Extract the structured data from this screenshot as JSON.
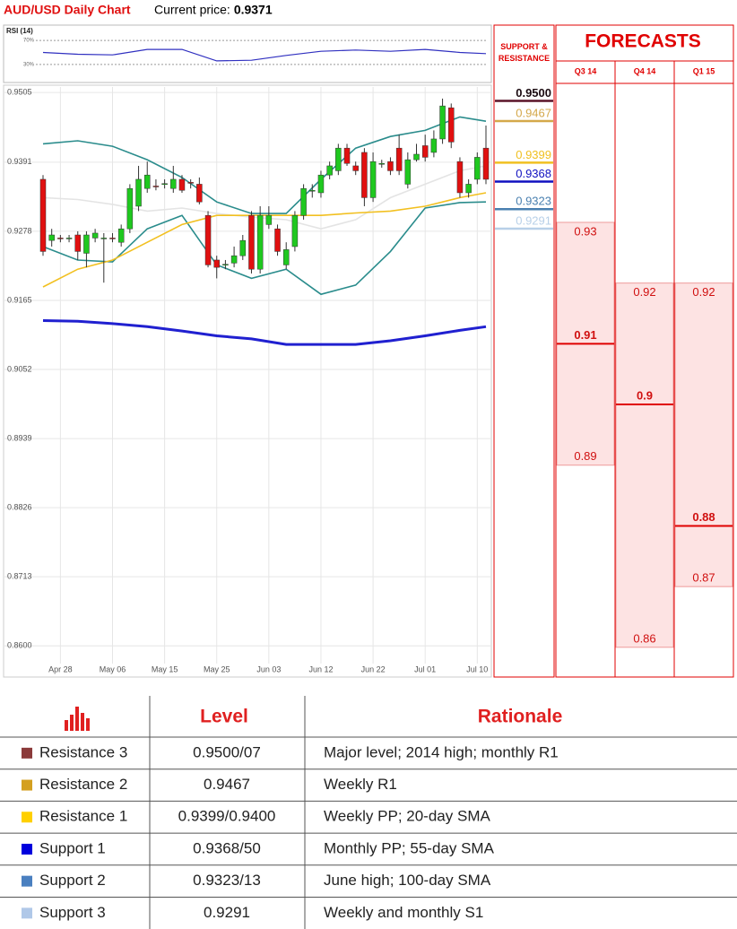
{
  "header": {
    "title": "AUD/USD Daily Chart",
    "price_label": "Current price:",
    "price": 0.9371
  },
  "chart_data": [
    {
      "type": "candlestick",
      "categories": [
        null,
        null,
        "Apr 28",
        null,
        null,
        null,
        null,
        null,
        "May 06",
        null,
        null,
        null,
        null,
        null,
        "May 15",
        null,
        null,
        null,
        null,
        null,
        "May 25",
        null,
        null,
        null,
        null,
        null,
        "Jun 03",
        null,
        null,
        null,
        null,
        null,
        "Jun 12",
        null,
        null,
        null,
        null,
        null,
        "Jun 22",
        null,
        null,
        null,
        null,
        null,
        "Jul 01",
        null,
        null,
        null,
        null,
        null,
        "Jul 10",
        null
      ],
      "open": [
        0.9363,
        0.9263,
        0.9267,
        0.9266,
        0.9272,
        0.9242,
        0.9267,
        0.9266,
        0.9267,
        0.926,
        0.9282,
        0.9319,
        0.9348,
        0.9352,
        0.9355,
        0.9348,
        0.9363,
        0.9358,
        0.9355,
        0.9304,
        0.9231,
        0.9223,
        0.9226,
        0.9238,
        0.9304,
        0.9216,
        0.9289,
        0.9282,
        0.9223,
        0.9253,
        0.9304,
        0.9344,
        0.9341,
        0.937,
        0.9377,
        0.9414,
        0.9385,
        0.9407,
        0.9333,
        0.9388,
        0.9392,
        0.9414,
        0.9355,
        0.9395,
        0.9418,
        0.9407,
        0.9429,
        0.948,
        0.9392,
        0.9341,
        0.9363,
        0.9414
      ],
      "high": [
        0.937,
        0.9282,
        0.9272,
        0.9272,
        0.9278,
        0.9278,
        0.9282,
        0.9275,
        0.9275,
        0.9289,
        0.9355,
        0.9385,
        0.9392,
        0.9363,
        0.9363,
        0.9385,
        0.937,
        0.9363,
        0.9366,
        0.9311,
        0.9238,
        0.9231,
        0.9253,
        0.9272,
        0.9311,
        0.9319,
        0.9319,
        0.9289,
        0.926,
        0.9311,
        0.9355,
        0.9355,
        0.9377,
        0.9392,
        0.9421,
        0.9421,
        0.9392,
        0.9414,
        0.9407,
        0.9395,
        0.9399,
        0.9436,
        0.9407,
        0.9421,
        0.9436,
        0.9443,
        0.9495,
        0.9487,
        0.9399,
        0.9363,
        0.9407,
        0.9451
      ],
      "low": [
        0.9238,
        0.9253,
        0.926,
        0.926,
        0.9231,
        0.9219,
        0.926,
        0.9194,
        0.926,
        0.9253,
        0.9275,
        0.9311,
        0.9341,
        0.9345,
        0.9348,
        0.9341,
        0.9341,
        0.9348,
        0.9322,
        0.9219,
        0.9201,
        0.9216,
        0.9219,
        0.9231,
        0.9209,
        0.9209,
        0.9282,
        0.9238,
        0.9216,
        0.9245,
        0.9297,
        0.9333,
        0.9333,
        0.9363,
        0.937,
        0.9385,
        0.937,
        0.9319,
        0.9326,
        0.9382,
        0.937,
        0.937,
        0.9348,
        0.9392,
        0.9392,
        0.9399,
        0.9421,
        0.9414,
        0.9333,
        0.9333,
        0.9355,
        0.9355
      ],
      "close": [
        0.9245,
        0.9272,
        0.9266,
        0.9267,
        0.9245,
        0.9272,
        0.9275,
        0.9267,
        0.9266,
        0.9282,
        0.9348,
        0.9363,
        0.937,
        0.9351,
        0.9356,
        0.9363,
        0.9345,
        0.9357,
        0.9326,
        0.9223,
        0.9219,
        0.9224,
        0.9238,
        0.9263,
        0.9216,
        0.9304,
        0.9304,
        0.9245,
        0.9248,
        0.9304,
        0.9348,
        0.9345,
        0.937,
        0.9385,
        0.9414,
        0.9389,
        0.9377,
        0.9333,
        0.9392,
        0.9389,
        0.9377,
        0.9377,
        0.9395,
        0.9404,
        0.9399,
        0.9429,
        0.9483,
        0.9424,
        0.9341,
        0.9355,
        0.9399,
        0.9363
      ],
      "up_color": "#1fc81f",
      "down_color": "#e01010",
      "series": [
        {
          "color": "#2a8c8c",
          "x": [
            0,
            4,
            8,
            12,
            16,
            20,
            24,
            28,
            32,
            36,
            40,
            44,
            48,
            51
          ],
          "values": [
            0.9421,
            0.9426,
            0.9417,
            0.9395,
            0.9366,
            0.9326,
            0.9307,
            0.9307,
            0.9363,
            0.9414,
            0.9433,
            0.9443,
            0.9465,
            0.9458
          ]
        },
        {
          "color": "#2a8c8c",
          "x": [
            0,
            4,
            8,
            12,
            16,
            20,
            24,
            28,
            32,
            36,
            40,
            44,
            48,
            51
          ],
          "values": [
            0.9253,
            0.9231,
            0.9228,
            0.9282,
            0.9304,
            0.9223,
            0.9201,
            0.9216,
            0.9175,
            0.919,
            0.9245,
            0.9316,
            0.9325,
            0.9326
          ]
        },
        {
          "color": "#e4e4e4",
          "x": [
            0,
            4,
            8,
            12,
            16,
            20,
            24,
            28,
            32,
            36,
            40,
            44,
            48,
            51
          ],
          "values": [
            0.9333,
            0.933,
            0.9322,
            0.9311,
            0.9316,
            0.9307,
            0.9301,
            0.9297,
            0.9282,
            0.9297,
            0.9333,
            0.9355,
            0.9377,
            0.9385
          ]
        },
        {
          "color": "#f2c020",
          "x": [
            0,
            4,
            8,
            12,
            16,
            20,
            24,
            28,
            32,
            36,
            40,
            44,
            48,
            51
          ],
          "values": [
            0.9187,
            0.9216,
            0.9231,
            0.926,
            0.9289,
            0.9304,
            0.9304,
            0.9304,
            0.9304,
            0.9308,
            0.9311,
            0.9319,
            0.9333,
            0.9341
          ]
        },
        {
          "color": "#2020d0",
          "x": [
            0,
            4,
            8,
            12,
            16,
            20,
            24,
            28,
            32,
            36,
            40,
            44,
            48,
            51
          ],
          "values": [
            0.9132,
            0.9131,
            0.9127,
            0.9122,
            0.9115,
            0.9107,
            0.9102,
            0.9093,
            0.9093,
            0.9093,
            0.9099,
            0.9107,
            0.9116,
            0.9122
          ]
        }
      ],
      "ylim": [
        0.8549,
        0.9514
      ],
      "yticks": [
        0.9505,
        0.9391,
        0.9278,
        0.9165,
        0.9052,
        0.8939,
        0.8826,
        0.8713,
        {
          "value": 0.86,
          "label": "0.8600"
        }
      ],
      "grid": true
    },
    {
      "type": "line",
      "title": "RSI (14)",
      "color": "#3030c0",
      "x": [
        0,
        4,
        8,
        12,
        16,
        20,
        24,
        28,
        32,
        36,
        40,
        44,
        48,
        51
      ],
      "values": [
        50,
        47,
        46,
        55,
        55,
        36,
        37,
        45,
        52,
        54,
        52,
        55,
        50,
        48
      ],
      "ylim": [
        0,
        100
      ],
      "yticks": [
        {
          "value": 70,
          "label": "70%"
        },
        {
          "value": 30,
          "label": "30%"
        }
      ],
      "grid": true
    },
    {
      "type": "levels",
      "title": "SUPPORT & RESISTANCE",
      "values": [
        0.95,
        0.9467,
        0.9399,
        0.9368,
        0.9323,
        0.9291
      ],
      "value_labels": [
        "0.9500",
        "0.9467",
        "0.9399",
        "0.9368",
        "0.9323",
        "0.9291"
      ],
      "colors": [
        "#5a1428",
        "#d4a84a",
        "#f0c020",
        "#1010c0",
        "#4a80b0",
        "#b8d0e8"
      ],
      "ylim": [
        0.8549,
        0.9514
      ]
    },
    {
      "type": "forecast",
      "title": "FORECASTS",
      "categories": [
        "Q3 14",
        "Q4 14",
        "Q1 15"
      ],
      "high": [
        0.93,
        0.92,
        0.92
      ],
      "median": [
        0.91,
        0.9,
        0.88
      ],
      "low": [
        0.89,
        0.86,
        0.87
      ],
      "color": "#e00000",
      "ylim": [
        0.8551,
        0.9526
      ]
    }
  ],
  "table": {
    "headers": [
      "Level",
      "Rationale"
    ],
    "rows": [
      {
        "name": "Resistance 3",
        "level": "0.9500/07",
        "rationale": "Major level; 2014 high; monthly R1",
        "color": "#8b3a3a"
      },
      {
        "name": "Resistance 2",
        "level": "0.9467",
        "rationale": "Weekly R1",
        "color": "#d4a020"
      },
      {
        "name": "Resistance 1",
        "level": "0.9399/0.9400",
        "rationale": "Weekly PP; 20-day SMA",
        "color": "#ffd000"
      },
      {
        "name": "Support 1",
        "level": "0.9368/50",
        "rationale": "Monthly PP; 55-day SMA",
        "color": "#0000dd"
      },
      {
        "name": "Support 2",
        "level": "0.9323/13",
        "rationale": "June high; 100-day SMA",
        "color": "#4a80c0"
      },
      {
        "name": "Support 3",
        "level": "0.9291",
        "rationale": "Weekly and monthly S1",
        "color": "#b0c8e8"
      }
    ]
  }
}
